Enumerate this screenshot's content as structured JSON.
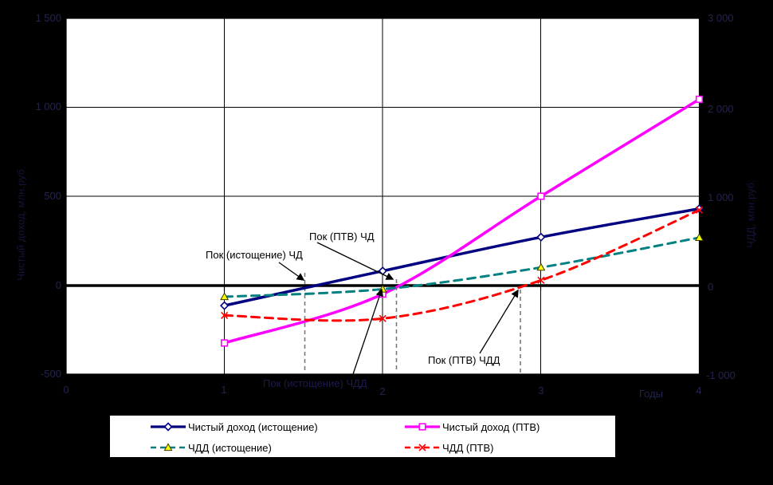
{
  "chart_data": {
    "type": "line",
    "title": "",
    "grid": true,
    "legend_position": "bottom",
    "x": [
      1,
      2,
      3,
      4
    ],
    "x_axis": {
      "title": "Годы",
      "ticks": [
        "0",
        "1",
        "2",
        "3",
        "4"
      ],
      "range": [
        0,
        4
      ]
    },
    "left_axis": {
      "title": "Чистый доход, млн.руб.",
      "ticks": [
        "1 500",
        "1 000",
        "500",
        "0",
        "-500"
      ],
      "range": [
        -500,
        1500
      ]
    },
    "right_axis": {
      "title": "ЧДД, млн.руб.",
      "ticks": [
        "3 000",
        "2 000",
        "1 000",
        "0",
        "-1 000"
      ],
      "range": [
        -1000,
        3000
      ]
    },
    "series": [
      {
        "name": "Чистый доход (истощение)",
        "axis": "left",
        "color": "#000080",
        "line": "solid",
        "marker": "diamond",
        "marker_fill": "#ffffff",
        "values": [
          -115,
          80,
          270,
          430
        ]
      },
      {
        "name": "Чистый доход (ПТВ)",
        "axis": "left",
        "color": "#FF00FF",
        "line": "solid",
        "marker": "square",
        "marker_fill": "#ffffff",
        "values": [
          -325,
          -50,
          500,
          1045
        ]
      },
      {
        "name": "ЧДД (истощение)",
        "axis": "right",
        "color": "#008080",
        "line": "dashed",
        "marker": "triangle",
        "marker_fill": "#FFFF00",
        "values": [
          -130,
          -45,
          200,
          535
        ]
      },
      {
        "name": "ЧДД (ПТВ)",
        "axis": "right",
        "color": "#FF0000",
        "line": "dashed",
        "marker": "x",
        "marker_fill": "#FF0000",
        "values": [
          -340,
          -375,
          55,
          845
        ]
      }
    ],
    "annotations": [
      {
        "label": "Пок (истощение) ЧД",
        "x": 1.51
      },
      {
        "label": "Пок (ПТВ) ЧД",
        "x": 2.09
      },
      {
        "label": "Пок (ПТВ) ЧДД",
        "x": 2.87
      },
      {
        "label": "Пок (истощение) ЧДД",
        "x": 2.0
      }
    ]
  },
  "colors": {
    "background": "#000000",
    "plot_background": "#ffffff",
    "gridline": "#000000",
    "zero_line": "#000000",
    "dashed_guide": "#7a7a7a",
    "dim_text": "#23234f"
  }
}
